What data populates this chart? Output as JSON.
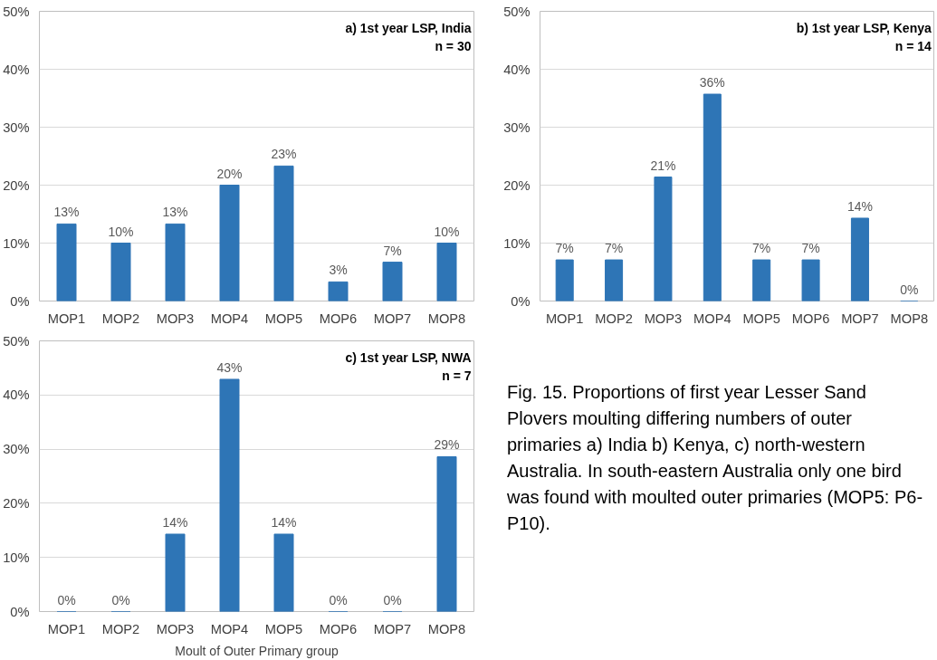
{
  "chart_data": [
    {
      "type": "bar",
      "title": "a) 1st year LSP, India",
      "subtitle": "n = 30",
      "categories": [
        "MOP1",
        "MOP2",
        "MOP3",
        "MOP4",
        "MOP5",
        "MOP6",
        "MOP7",
        "MOP8"
      ],
      "series": [
        {
          "color": "#2e75b6",
          "values": [
            13.3,
            10,
            13.3,
            20,
            23.3,
            3.3,
            6.7,
            10
          ],
          "value_labels": [
            "13%",
            "10%",
            "13%",
            "20%",
            "23%",
            "3%",
            "7%",
            "10%"
          ]
        }
      ],
      "ylim": [
        0,
        50
      ],
      "yticks": [
        {
          "value": 0,
          "label": "0%"
        },
        {
          "value": 10,
          "label": "10%"
        },
        {
          "value": 20,
          "label": "20%"
        },
        {
          "value": 30,
          "label": "30%"
        },
        {
          "value": 40,
          "label": "40%"
        },
        {
          "value": 50,
          "label": "50%"
        }
      ],
      "grid": "y"
    },
    {
      "type": "bar",
      "title": "b) 1st year LSP, Kenya",
      "subtitle": "n = 14",
      "categories": [
        "MOP1",
        "MOP2",
        "MOP3",
        "MOP4",
        "MOP5",
        "MOP6",
        "MOP7",
        "MOP8"
      ],
      "series": [
        {
          "color": "#2e75b6",
          "values": [
            7.1,
            7.1,
            21.4,
            35.7,
            7.1,
            7.1,
            14.3,
            0
          ],
          "value_labels": [
            "7%",
            "7%",
            "21%",
            "36%",
            "7%",
            "7%",
            "14%",
            "0%"
          ]
        }
      ],
      "ylim": [
        0,
        50
      ],
      "yticks": [
        {
          "value": 0,
          "label": "0%"
        },
        {
          "value": 10,
          "label": "10%"
        },
        {
          "value": 20,
          "label": "20%"
        },
        {
          "value": 30,
          "label": "30%"
        },
        {
          "value": 40,
          "label": "40%"
        },
        {
          "value": 50,
          "label": "50%"
        }
      ],
      "grid": "y"
    },
    {
      "type": "bar",
      "title": "c) 1st year LSP, NWA",
      "subtitle": "n = 7",
      "xlabel": "Moult of Outer Primary group",
      "categories": [
        "MOP1",
        "MOP2",
        "MOP3",
        "MOP4",
        "MOP5",
        "MOP6",
        "MOP7",
        "MOP8"
      ],
      "series": [
        {
          "color": "#2e75b6",
          "values": [
            0,
            0,
            14.3,
            42.9,
            14.3,
            0,
            0,
            28.6
          ],
          "value_labels": [
            "0%",
            "0%",
            "14%",
            "43%",
            "14%",
            "0%",
            "0%",
            "29%"
          ]
        }
      ],
      "ylim": [
        0,
        50
      ],
      "yticks": [
        {
          "value": 0,
          "label": "0%"
        },
        {
          "value": 10,
          "label": "10%"
        },
        {
          "value": 20,
          "label": "20%"
        },
        {
          "value": 30,
          "label": "30%"
        },
        {
          "value": 40,
          "label": "40%"
        },
        {
          "value": 50,
          "label": "50%"
        }
      ],
      "grid": "y"
    },
    {
      "type": "other",
      "annotations": [
        "Fig. 15. Proportions of first year Lesser Sand Plovers moulting differing numbers of outer primaries a) India b) Kenya, c) north-western Australia. In south-eastern Australia only one bird was found with moulted outer primaries (MOP5: P6-P10)."
      ]
    }
  ]
}
